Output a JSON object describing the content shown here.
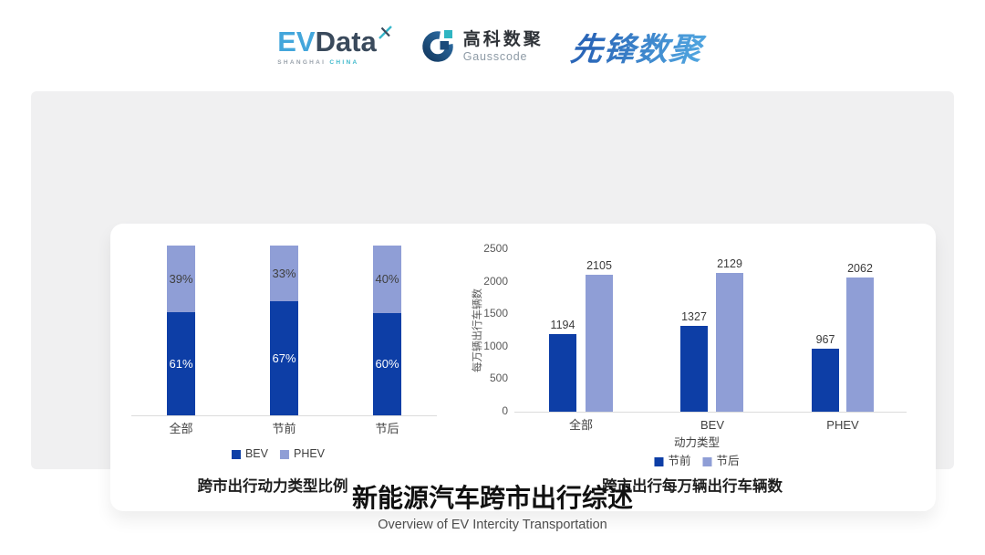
{
  "header": {
    "evdata": {
      "ev": "EV",
      "data": "Data",
      "mark_icon": "x-spark-icon",
      "sub_left": "SHANGHAI",
      "sub_right": "CHINA"
    },
    "gausscode": {
      "mark_icon": "gausscode-g-icon",
      "cn": "高科数聚",
      "en": "Gausscode"
    },
    "pioneer": {
      "text": "先锋数聚"
    }
  },
  "colors": {
    "dark_blue": "#0D3EA6",
    "light_blue": "#8F9ED6",
    "axis_line": "#DCDCDC",
    "panel_bg": "#F0F0F1",
    "evdata_blue": "#43A6DB",
    "evdata_dark": "#3A4A5C",
    "teal": "#37B7CB",
    "gauss_navy": "#1B4A7A"
  },
  "chart_data": [
    {
      "type": "bar",
      "subtype": "stacked-percent",
      "title": "跨市出行动力类型比例",
      "categories": [
        "全部",
        "节前",
        "节后"
      ],
      "series": [
        {
          "name": "BEV",
          "values": [
            61,
            67,
            60
          ],
          "unit": "%",
          "color": "#0D3EA6"
        },
        {
          "name": "PHEV",
          "values": [
            39,
            33,
            40
          ],
          "unit": "%",
          "color": "#8F9ED6"
        }
      ],
      "xlabel": "",
      "ylabel": "",
      "ylim": [
        0,
        100
      ],
      "grid": false,
      "legend_position": "bottom"
    },
    {
      "type": "bar",
      "subtype": "grouped",
      "title": "跨市出行每万辆出行车辆数",
      "categories": [
        "全部",
        "BEV",
        "PHEV"
      ],
      "series": [
        {
          "name": "节前",
          "values": [
            1194,
            1327,
            967
          ],
          "color": "#0D3EA6"
        },
        {
          "name": "节后",
          "values": [
            2105,
            2129,
            2062
          ],
          "color": "#8F9ED6"
        }
      ],
      "xlabel": "动力类型",
      "ylabel": "每万辆出行车辆数",
      "ylim": [
        0,
        2500
      ],
      "yticks": [
        0,
        500,
        1000,
        1500,
        2000,
        2500
      ],
      "grid": false,
      "legend_position": "bottom"
    }
  ],
  "footer": {
    "title": "新能源汽车跨市出行综述",
    "subtitle": "Overview of EV Intercity Transportation"
  }
}
